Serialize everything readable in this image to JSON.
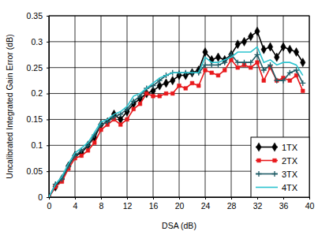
{
  "chart_data": {
    "type": "line",
    "x_label": "DSA (dB)",
    "y_label": "Uncalibrated Integrated Gain Error (dB)",
    "x": [
      0,
      1,
      2,
      3,
      4,
      5,
      6,
      7,
      8,
      9,
      10,
      11,
      12,
      13,
      14,
      15,
      16,
      17,
      18,
      19,
      20,
      21,
      22,
      23,
      24,
      25,
      26,
      27,
      28,
      29,
      30,
      31,
      32,
      33,
      34,
      35,
      36,
      37,
      38,
      39
    ],
    "series": [
      {
        "name": "1TX",
        "color": "#000000",
        "marker": "diamond",
        "line_style": "solid",
        "values": [
          0,
          0.02,
          0.035,
          0.06,
          0.08,
          0.085,
          0.1,
          0.115,
          0.14,
          0.145,
          0.16,
          0.15,
          0.165,
          0.18,
          0.19,
          0.2,
          0.205,
          0.215,
          0.22,
          0.225,
          0.235,
          0.235,
          0.24,
          0.245,
          0.28,
          0.265,
          0.27,
          0.265,
          0.275,
          0.295,
          0.3,
          0.31,
          0.32,
          0.285,
          0.29,
          0.27,
          0.29,
          0.285,
          0.28,
          0.26
        ]
      },
      {
        "name": "2TX",
        "color": "#e8191c",
        "marker": "square",
        "line_style": "solid",
        "values": [
          0,
          0.02,
          0.03,
          0.055,
          0.075,
          0.08,
          0.09,
          0.105,
          0.13,
          0.14,
          0.15,
          0.14,
          0.15,
          0.17,
          0.18,
          0.2,
          0.195,
          0.195,
          0.2,
          0.2,
          0.215,
          0.21,
          0.22,
          0.215,
          0.245,
          0.24,
          0.235,
          0.245,
          0.265,
          0.25,
          0.255,
          0.25,
          0.26,
          0.225,
          0.25,
          0.225,
          0.23,
          0.225,
          0.235,
          0.205
        ]
      },
      {
        "name": "3TX",
        "color": "#1f5c66",
        "marker": "plus",
        "line_style": "solid",
        "values": [
          0,
          0.025,
          0.035,
          0.06,
          0.08,
          0.09,
          0.1,
          0.12,
          0.14,
          0.145,
          0.155,
          0.16,
          0.17,
          0.185,
          0.195,
          0.21,
          0.215,
          0.225,
          0.235,
          0.24,
          0.24,
          0.24,
          0.24,
          0.24,
          0.255,
          0.255,
          0.255,
          0.26,
          0.275,
          0.26,
          0.26,
          0.26,
          0.275,
          0.245,
          0.255,
          0.225,
          0.225,
          0.24,
          0.245,
          0.22
        ]
      },
      {
        "name": "4TX",
        "color": "#2cc4cf",
        "marker": "none",
        "line_style": "solid",
        "values": [
          0,
          0.025,
          0.04,
          0.065,
          0.085,
          0.095,
          0.105,
          0.125,
          0.145,
          0.15,
          0.16,
          0.165,
          0.175,
          0.195,
          0.2,
          0.21,
          0.22,
          0.23,
          0.235,
          0.24,
          0.24,
          0.24,
          0.24,
          0.24,
          0.27,
          0.26,
          0.26,
          0.265,
          0.27,
          0.28,
          0.28,
          0.28,
          0.29,
          0.26,
          0.265,
          0.255,
          0.26,
          0.26,
          0.255,
          0.235
        ]
      }
    ],
    "xlim": [
      0,
      40
    ],
    "xticks": [
      0,
      4,
      8,
      12,
      16,
      20,
      24,
      28,
      32,
      36,
      40
    ],
    "ylim": [
      0,
      0.35
    ],
    "yticks": [
      0,
      0.05,
      0.1,
      0.15,
      0.2,
      0.25,
      0.3,
      0.35
    ],
    "grid": true,
    "legend": "lower right"
  }
}
